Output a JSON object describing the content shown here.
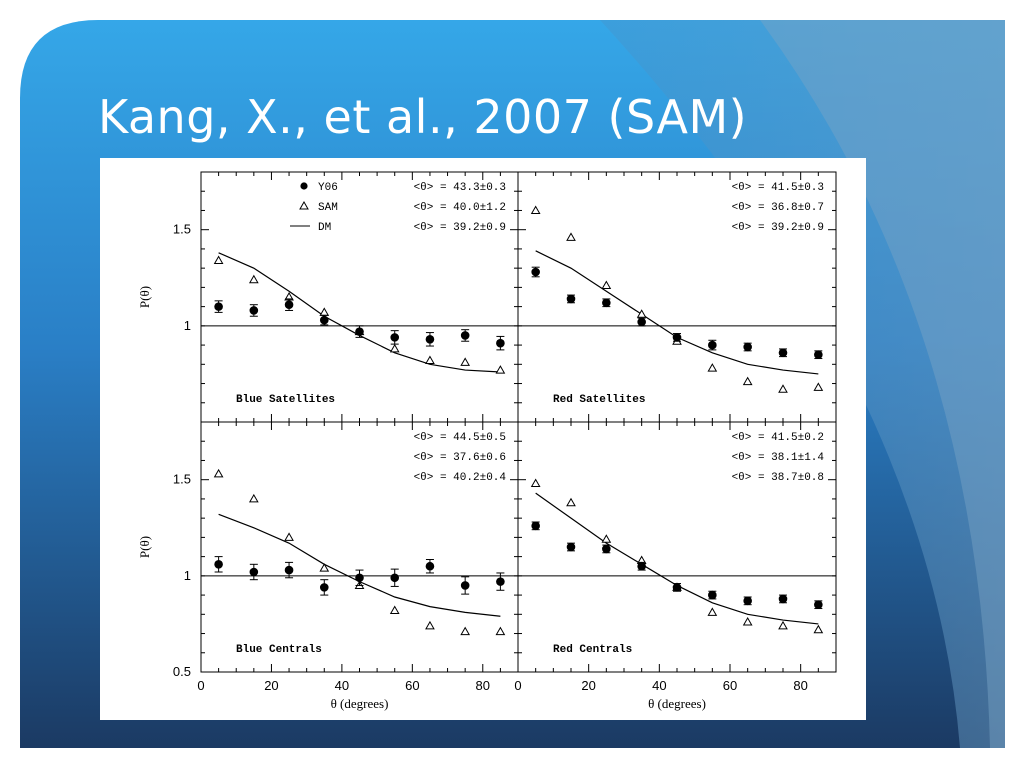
{
  "slide": {
    "title": "Kang, X., et al., 2007 (SAM)"
  },
  "chart_data": [
    {
      "panel": "Blue Satellites",
      "type": "scatter",
      "label": "Blue Satellites",
      "xlim": [
        0,
        90
      ],
      "ylim": [
        0.5,
        1.8
      ],
      "ylabel": "P(θ)",
      "x": [
        5,
        15,
        25,
        35,
        45,
        55,
        65,
        75,
        85
      ],
      "legend": [
        {
          "symbol": "●",
          "name": "Y06",
          "stat": "<θ> = 43.3±0.3"
        },
        {
          "symbol": "△",
          "name": "SAM",
          "stat": "<θ> = 40.0±1.2"
        },
        {
          "symbol": "—",
          "name": "DM",
          "stat": "<θ> = 39.2±0.9"
        }
      ],
      "series": [
        {
          "name": "Y06",
          "values": [
            1.1,
            1.08,
            1.11,
            1.03,
            0.97,
            0.94,
            0.93,
            0.95,
            0.91
          ],
          "errors": [
            0.03,
            0.03,
            0.03,
            0.025,
            0.03,
            0.035,
            0.035,
            0.03,
            0.035
          ]
        },
        {
          "name": "SAM",
          "values": [
            1.34,
            1.24,
            1.15,
            1.07,
            0.97,
            0.88,
            0.82,
            0.81,
            0.77
          ]
        },
        {
          "name": "DM",
          "values": [
            1.38,
            1.3,
            1.18,
            1.05,
            0.95,
            0.86,
            0.8,
            0.77,
            0.76
          ]
        }
      ]
    },
    {
      "panel": "Red Satellites",
      "type": "scatter",
      "label": "Red Satellites",
      "xlim": [
        0,
        90
      ],
      "ylim": [
        0.5,
        1.8
      ],
      "x": [
        5,
        15,
        25,
        35,
        45,
        55,
        65,
        75,
        85
      ],
      "legend": [
        {
          "name": "",
          "stat": "<θ> = 41.5±0.3"
        },
        {
          "name": "",
          "stat": "<θ> = 36.8±0.7"
        },
        {
          "name": "",
          "stat": "<θ> = 39.2±0.9"
        }
      ],
      "series": [
        {
          "name": "Y06",
          "values": [
            1.28,
            1.14,
            1.12,
            1.02,
            0.94,
            0.9,
            0.89,
            0.86,
            0.85
          ],
          "errors": [
            0.025,
            0.02,
            0.02,
            0.02,
            0.02,
            0.025,
            0.02,
            0.02,
            0.02
          ]
        },
        {
          "name": "SAM",
          "values": [
            1.6,
            1.46,
            1.21,
            1.06,
            0.92,
            0.78,
            0.71,
            0.67,
            0.68
          ]
        },
        {
          "name": "DM",
          "values": [
            1.39,
            1.3,
            1.18,
            1.06,
            0.94,
            0.86,
            0.8,
            0.77,
            0.75
          ]
        }
      ]
    },
    {
      "panel": "Blue Centrals",
      "type": "scatter",
      "label": "Blue Centrals",
      "xlim": [
        0,
        90
      ],
      "ylim": [
        0.5,
        1.8
      ],
      "ylabel": "P(θ)",
      "xlabel": "θ (degrees)",
      "x": [
        5,
        15,
        25,
        35,
        45,
        55,
        65,
        75,
        85
      ],
      "legend": [
        {
          "name": "",
          "stat": "<θ> = 44.5±0.5"
        },
        {
          "name": "",
          "stat": "<θ> = 37.6±0.6"
        },
        {
          "name": "",
          "stat": "<θ> = 40.2±0.4"
        }
      ],
      "series": [
        {
          "name": "Y06",
          "values": [
            1.06,
            1.02,
            1.03,
            0.94,
            0.99,
            0.99,
            1.05,
            0.95,
            0.97
          ],
          "errors": [
            0.04,
            0.04,
            0.04,
            0.04,
            0.04,
            0.045,
            0.035,
            0.045,
            0.045
          ]
        },
        {
          "name": "SAM",
          "values": [
            1.53,
            1.4,
            1.2,
            1.04,
            0.95,
            0.82,
            0.74,
            0.71,
            0.71
          ]
        },
        {
          "name": "DM",
          "values": [
            1.32,
            1.25,
            1.17,
            1.06,
            0.97,
            0.89,
            0.84,
            0.81,
            0.79
          ]
        }
      ]
    },
    {
      "panel": "Red Centrals",
      "type": "scatter",
      "label": "Red Centrals",
      "xlim": [
        0,
        90
      ],
      "ylim": [
        0.5,
        1.8
      ],
      "xlabel": "θ (degrees)",
      "x": [
        5,
        15,
        25,
        35,
        45,
        55,
        65,
        75,
        85
      ],
      "legend": [
        {
          "name": "",
          "stat": "<θ> = 41.5±0.2"
        },
        {
          "name": "",
          "stat": "<θ> = 38.1±1.4"
        },
        {
          "name": "",
          "stat": "<θ> = 38.7±0.8"
        }
      ],
      "series": [
        {
          "name": "Y06",
          "values": [
            1.26,
            1.15,
            1.14,
            1.05,
            0.94,
            0.9,
            0.87,
            0.88,
            0.85
          ],
          "errors": [
            0.02,
            0.02,
            0.02,
            0.02,
            0.02,
            0.02,
            0.02,
            0.02,
            0.02
          ]
        },
        {
          "name": "SAM",
          "values": [
            1.48,
            1.38,
            1.19,
            1.08,
            0.94,
            0.81,
            0.76,
            0.74,
            0.72
          ]
        },
        {
          "name": "DM",
          "values": [
            1.43,
            1.3,
            1.17,
            1.06,
            0.95,
            0.86,
            0.8,
            0.77,
            0.75
          ]
        }
      ]
    }
  ],
  "axes": {
    "yticks": [
      "0.5",
      "1",
      "1.5"
    ],
    "yticks_top": [
      "1",
      "1.5"
    ],
    "xticks": [
      "0",
      "20",
      "40",
      "60",
      "80"
    ],
    "xticks_right": [
      "0",
      "20",
      "40",
      "60",
      "80"
    ]
  },
  "colors": {
    "slide_bg_dark": "#1b3a63",
    "slide_bg_mid": "#2a7fc6",
    "slide_bg_light": "#35a7e8",
    "white": "#ffffff",
    "ink": "#000000"
  }
}
